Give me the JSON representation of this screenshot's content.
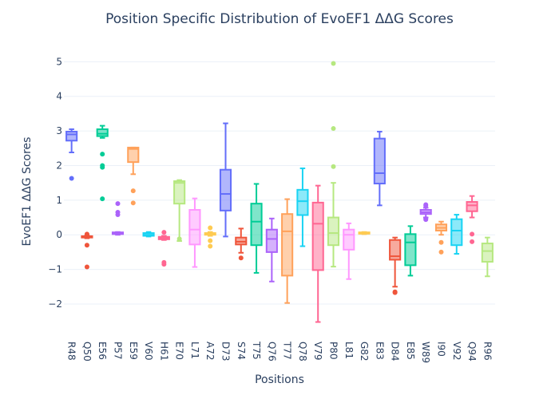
{
  "chart_data": {
    "type": "box",
    "title": "Position Specific Distribution of EvoEF1 ΔΔG Scores",
    "xlabel": "Positions",
    "ylabel": "EvoEF1 ΔΔG Scores",
    "ylim": [
      -2.9,
      5.4
    ],
    "yticks": [
      -2,
      -1,
      0,
      1,
      2,
      3,
      4,
      5
    ],
    "ytick_labels": [
      "−2",
      "−1",
      "0",
      "1",
      "2",
      "3",
      "4",
      "5"
    ],
    "grid": true,
    "legend": "none",
    "categories": [
      "R48",
      "Q50",
      "E56",
      "P57",
      "E59",
      "V60",
      "H61",
      "E70",
      "L71",
      "A72",
      "D73",
      "S74",
      "T75",
      "Q76",
      "T77",
      "Q78",
      "V79",
      "P80",
      "L81",
      "G82",
      "E83",
      "D84",
      "E85",
      "W89",
      "I90",
      "V92",
      "Q94",
      "R96"
    ],
    "boxes": [
      {
        "position": "R48",
        "color": "#636efa",
        "q1": 2.72,
        "median": 2.9,
        "q3": 2.98,
        "lower_whisker": 2.38,
        "upper_whisker": 3.05,
        "outliers": [
          1.63
        ]
      },
      {
        "position": "Q50",
        "color": "#ef553b",
        "q1": -0.08,
        "median": -0.06,
        "q3": -0.04,
        "lower_whisker": -0.1,
        "upper_whisker": -0.02,
        "outliers": [
          0.0,
          0.02,
          -0.3,
          -0.93
        ]
      },
      {
        "position": "E56",
        "color": "#00cc96",
        "q1": 2.85,
        "median": 2.92,
        "q3": 3.05,
        "lower_whisker": 2.8,
        "upper_whisker": 3.15,
        "outliers": [
          2.33,
          2.0,
          1.95,
          1.04
        ]
      },
      {
        "position": "P57",
        "color": "#ab63fa",
        "q1": 0.02,
        "median": 0.04,
        "q3": 0.07,
        "lower_whisker": 0.0,
        "upper_whisker": 0.08,
        "outliers": [
          0.9,
          0.65,
          0.58
        ]
      },
      {
        "position": "E59",
        "color": "#ffa15a",
        "q1": 2.1,
        "median": 2.48,
        "q3": 2.52,
        "lower_whisker": 1.75,
        "upper_whisker": 2.52,
        "outliers": [
          1.27,
          0.92
        ]
      },
      {
        "position": "V60",
        "color": "#19d3f3",
        "q1": -0.03,
        "median": 0.0,
        "q3": 0.05,
        "lower_whisker": -0.05,
        "upper_whisker": 0.08,
        "outliers": []
      },
      {
        "position": "H61",
        "color": "#ff6692",
        "q1": -0.13,
        "median": -0.1,
        "q3": -0.06,
        "lower_whisker": -0.15,
        "upper_whisker": -0.03,
        "outliers": [
          0.07,
          -0.8,
          -0.85
        ]
      },
      {
        "position": "E70",
        "color": "#b6e880",
        "q1": 0.9,
        "median": 1.5,
        "q3": 1.55,
        "lower_whisker": -0.18,
        "upper_whisker": 1.58,
        "outliers": [
          -0.12
        ]
      },
      {
        "position": "L71",
        "color": "#ff97ff",
        "q1": -0.28,
        "median": 0.15,
        "q3": 0.72,
        "lower_whisker": -0.93,
        "upper_whisker": 1.05,
        "outliers": []
      },
      {
        "position": "A72",
        "color": "#fecb52",
        "q1": 0.0,
        "median": 0.03,
        "q3": 0.05,
        "lower_whisker": -0.03,
        "upper_whisker": 0.08,
        "outliers": [
          0.2,
          -0.17,
          -0.33
        ]
      },
      {
        "position": "D73",
        "color": "#636efa",
        "q1": 0.7,
        "median": 1.18,
        "q3": 1.88,
        "lower_whisker": -0.05,
        "upper_whisker": 3.22,
        "outliers": []
      },
      {
        "position": "S74",
        "color": "#ef553b",
        "q1": -0.28,
        "median": -0.2,
        "q3": -0.08,
        "lower_whisker": -0.52,
        "upper_whisker": 0.18,
        "outliers": [
          -0.67
        ]
      },
      {
        "position": "T75",
        "color": "#00cc96",
        "q1": -0.3,
        "median": 0.38,
        "q3": 0.9,
        "lower_whisker": -1.1,
        "upper_whisker": 1.47,
        "outliers": []
      },
      {
        "position": "Q76",
        "color": "#ab63fa",
        "q1": -0.5,
        "median": -0.12,
        "q3": 0.15,
        "lower_whisker": -1.35,
        "upper_whisker": 0.47,
        "outliers": []
      },
      {
        "position": "T77",
        "color": "#ffa15a",
        "q1": -1.18,
        "median": 0.1,
        "q3": 0.6,
        "lower_whisker": -1.97,
        "upper_whisker": 1.03,
        "outliers": []
      },
      {
        "position": "Q78",
        "color": "#19d3f3",
        "q1": 0.57,
        "median": 0.97,
        "q3": 1.3,
        "lower_whisker": -0.33,
        "upper_whisker": 1.92,
        "outliers": []
      },
      {
        "position": "V79",
        "color": "#ff6692",
        "q1": -1.02,
        "median": 0.32,
        "q3": 0.93,
        "lower_whisker": -2.52,
        "upper_whisker": 1.42,
        "outliers": []
      },
      {
        "position": "P80",
        "color": "#b6e880",
        "q1": -0.3,
        "median": 0.05,
        "q3": 0.5,
        "lower_whisker": -0.92,
        "upper_whisker": 1.5,
        "outliers": [
          4.95,
          3.07,
          1.97
        ]
      },
      {
        "position": "L81",
        "color": "#ff97ff",
        "q1": -0.43,
        "median": 0.0,
        "q3": 0.15,
        "lower_whisker": -1.28,
        "upper_whisker": 0.33,
        "outliers": []
      },
      {
        "position": "G82",
        "color": "#fecb52",
        "q1": 0.03,
        "median": 0.05,
        "q3": 0.07,
        "lower_whisker": 0.02,
        "upper_whisker": 0.08,
        "outliers": []
      },
      {
        "position": "E83",
        "color": "#636efa",
        "q1": 1.48,
        "median": 1.78,
        "q3": 2.78,
        "lower_whisker": 0.85,
        "upper_whisker": 2.98,
        "outliers": []
      },
      {
        "position": "D84",
        "color": "#ef553b",
        "q1": -0.72,
        "median": -0.62,
        "q3": -0.15,
        "lower_whisker": -1.5,
        "upper_whisker": -0.08,
        "outliers": [
          -1.65,
          -1.67
        ]
      },
      {
        "position": "E85",
        "color": "#00cc96",
        "q1": -0.88,
        "median": -0.22,
        "q3": 0.02,
        "lower_whisker": -1.18,
        "upper_whisker": 0.25,
        "outliers": []
      },
      {
        "position": "W89",
        "color": "#ab63fa",
        "q1": 0.6,
        "median": 0.65,
        "q3": 0.72,
        "lower_whisker": 0.5,
        "upper_whisker": 0.78,
        "outliers": [
          0.87,
          0.84,
          0.47,
          0.44
        ]
      },
      {
        "position": "I90",
        "color": "#ffa15a",
        "q1": 0.12,
        "median": 0.2,
        "q3": 0.3,
        "lower_whisker": 0.0,
        "upper_whisker": 0.38,
        "outliers": [
          -0.22,
          -0.5
        ]
      },
      {
        "position": "V92",
        "color": "#19d3f3",
        "q1": -0.3,
        "median": 0.12,
        "q3": 0.45,
        "lower_whisker": -0.55,
        "upper_whisker": 0.58,
        "outliers": []
      },
      {
        "position": "Q94",
        "color": "#ff6692",
        "q1": 0.68,
        "median": 0.85,
        "q3": 0.95,
        "lower_whisker": 0.5,
        "upper_whisker": 1.12,
        "outliers": [
          0.02,
          -0.2
        ]
      },
      {
        "position": "R96",
        "color": "#b6e880",
        "q1": -0.78,
        "median": -0.47,
        "q3": -0.25,
        "lower_whisker": -1.2,
        "upper_whisker": -0.08,
        "outliers": []
      }
    ]
  }
}
